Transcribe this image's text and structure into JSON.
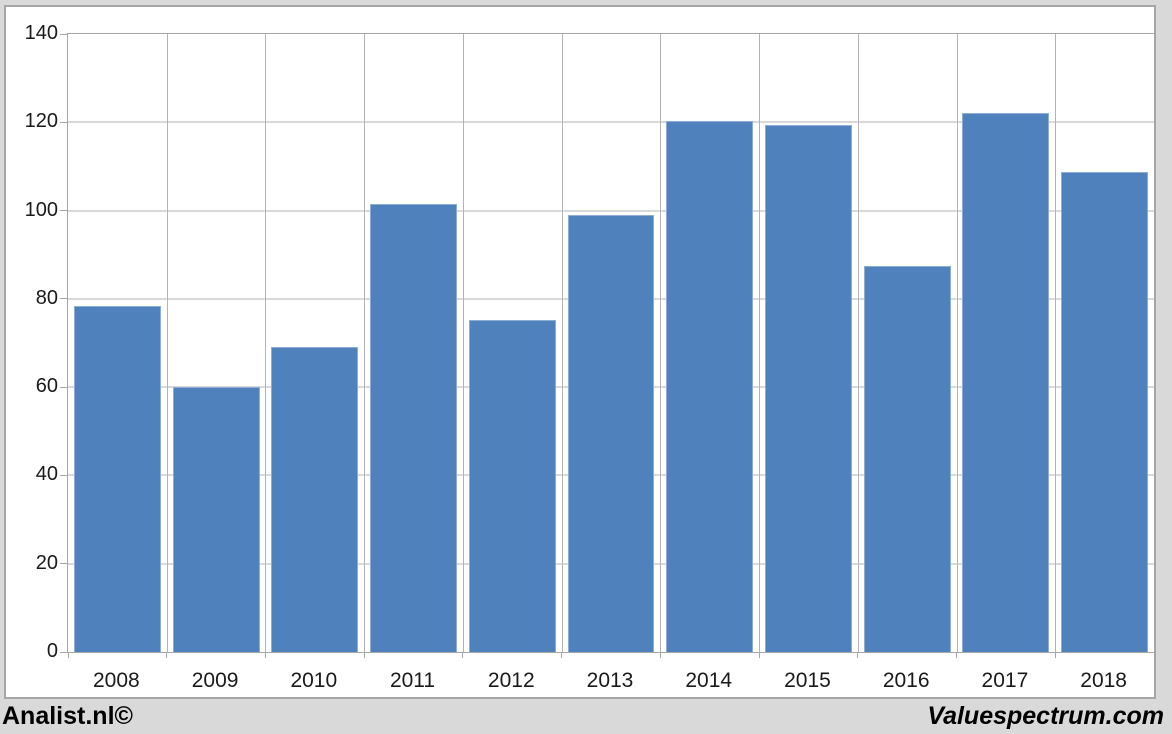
{
  "chart_data": {
    "type": "bar",
    "title": "",
    "xlabel": "",
    "ylabel": "",
    "categories": [
      "2008",
      "2009",
      "2010",
      "2011",
      "2012",
      "2013",
      "2014",
      "2015",
      "2016",
      "2017",
      "2018"
    ],
    "values": [
      78.4,
      60.1,
      69.2,
      101.5,
      75.3,
      99.0,
      120.3,
      119.4,
      87.5,
      122.1,
      108.7
    ],
    "ylim": [
      0,
      140
    ],
    "yticks": [
      0,
      20,
      40,
      60,
      80,
      100,
      120,
      140
    ],
    "grid": true,
    "legend": false,
    "bar_width_ratio": 0.88,
    "colors": {
      "bar": "#4f81bd",
      "bar_border": "#8eadd3",
      "gridline": "#b3b3b3",
      "axis": "#a6a6a6",
      "frame_border": "#a6a6a6",
      "plot_background": "#ffffff",
      "canvas_background": "#d9d9d9",
      "label_text": "#1a1a1a"
    }
  },
  "footer": {
    "left_text": "Analist.nl©",
    "right_text": "Valuespectrum.com"
  }
}
